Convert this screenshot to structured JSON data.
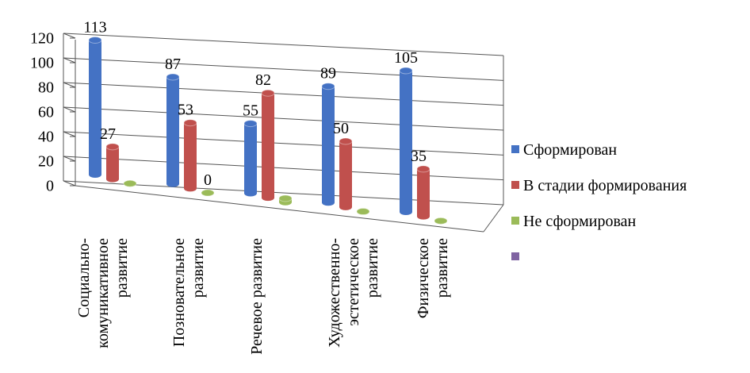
{
  "chart_data": {
    "type": "bar3d",
    "categories": [
      "Социально-\nкомуникативное\nразвитие",
      "Позновательное\nразвитие",
      "Речевое развитие",
      "Художественно-\nэстетическое\nразвитие",
      "Физическое\nразвитие"
    ],
    "series": [
      {
        "name": "Сформирован",
        "color": "#4472c4",
        "values": [
          113,
          87,
          55,
          89,
          105
        ]
      },
      {
        "name": "В стадии формирования",
        "color": "#c0504d",
        "values": [
          27,
          53,
          82,
          50,
          35
        ]
      },
      {
        "name": "Не сформирован",
        "color": "#9bbb59",
        "values": [
          0,
          0,
          3,
          0,
          0
        ],
        "value_labels": [
          null,
          "0",
          null,
          null,
          null
        ]
      },
      {
        "name": null,
        "color": "#8064a2",
        "values": [
          null,
          null,
          null,
          null,
          null
        ]
      }
    ],
    "ylim": [
      0,
      120
    ],
    "yticks": [
      0,
      20,
      40,
      60,
      80,
      100,
      120
    ],
    "grid": true
  }
}
